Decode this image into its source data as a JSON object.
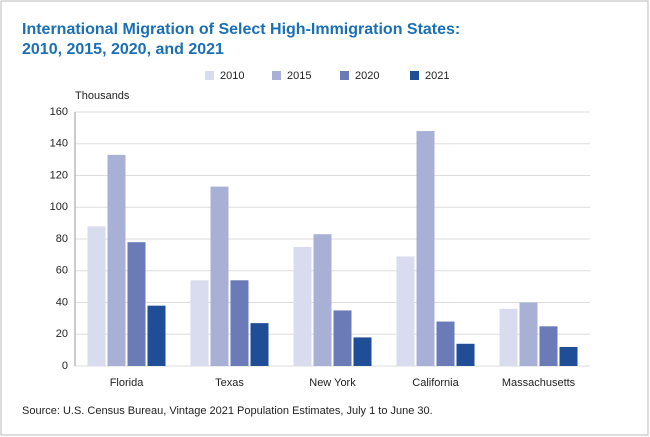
{
  "chart_data": {
    "type": "bar",
    "title": [
      "International Migration of Select High-Immigration States:",
      "2010, 2015, 2020, and 2021"
    ],
    "y_label": "Thousands",
    "source": "Source: U.S. Census Bureau, Vintage 2021 Population Estimates, July 1 to June 30.",
    "categories": [
      "Florida",
      "Texas",
      "New York",
      "California",
      "Massachusetts"
    ],
    "series": [
      {
        "name": "2010",
        "color": "#d9dcee",
        "values": [
          88,
          54,
          75,
          69,
          36
        ]
      },
      {
        "name": "2015",
        "color": "#a9b0d6",
        "values": [
          133,
          113,
          83,
          148,
          40
        ]
      },
      {
        "name": "2020",
        "color": "#6b7bb8",
        "values": [
          78,
          54,
          35,
          28,
          25
        ]
      },
      {
        "name": "2021",
        "color": "#1f4e96",
        "values": [
          38,
          27,
          18,
          14,
          12
        ]
      }
    ],
    "ylim": [
      0,
      160
    ],
    "yticks": [
      0,
      20,
      40,
      60,
      80,
      100,
      120,
      140,
      160
    ],
    "grid": true
  }
}
